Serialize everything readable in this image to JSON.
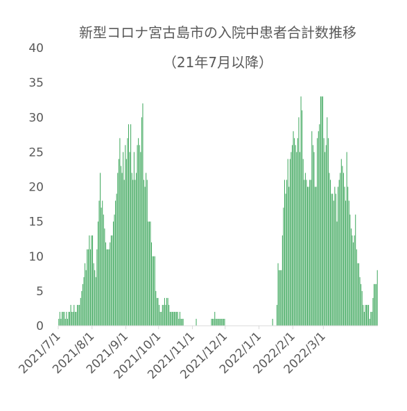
{
  "chart_data": {
    "type": "bar",
    "title": "新型コロナ宮古島市の入院中患者合計数推移",
    "subtitle": "（21年7月以降）",
    "xlabel": "",
    "ylabel": "",
    "ylim": [
      0,
      40
    ],
    "yticks": [
      "0",
      "5",
      "10",
      "15",
      "20",
      "25",
      "30",
      "35",
      "40"
    ],
    "xticks": [
      {
        "label": "2021/7/1",
        "date": "2021-07-01"
      },
      {
        "label": "2021/8/1",
        "date": "2021-08-01"
      },
      {
        "label": "2021/9/1",
        "date": "2021-09-01"
      },
      {
        "label": "2021/10/1",
        "date": "2021-10-01"
      },
      {
        "label": "2021/11/1",
        "date": "2021-11-01"
      },
      {
        "label": "2021/12/1",
        "date": "2021-12-01"
      },
      {
        "label": "2022/1/1",
        "date": "2022-01-01"
      },
      {
        "label": "2022/2/1",
        "date": "2022-02-01"
      },
      {
        "label": "2022/3/1",
        "date": "2022-03-01"
      }
    ],
    "grid": false,
    "legend": "none",
    "bar_color": "#2ea04f",
    "series": [
      {
        "start_date": "2021-07-01",
        "values": [
          1,
          2,
          1,
          2,
          2,
          2,
          1,
          2,
          1,
          2,
          2,
          3,
          2,
          2,
          3,
          2,
          2,
          3,
          3,
          3,
          4,
          5,
          6,
          7,
          9,
          8,
          11,
          11,
          13,
          11,
          13,
          13,
          9,
          8,
          7,
          11,
          15,
          18,
          22,
          17,
          18,
          16,
          14,
          12,
          11,
          11,
          11,
          12,
          13,
          13,
          15,
          16,
          18,
          19,
          22,
          24,
          27,
          23,
          22,
          25,
          21,
          26,
          24,
          27,
          29,
          25,
          29,
          22,
          21,
          25,
          21,
          22,
          26,
          27,
          26,
          25,
          30,
          32,
          21,
          20,
          22,
          21,
          15,
          15,
          15,
          12,
          10,
          10,
          10,
          5,
          4,
          4,
          3,
          2,
          2,
          3,
          3,
          4,
          3,
          4,
          4,
          3,
          2,
          2,
          2,
          2,
          2,
          2,
          2,
          2,
          1,
          2,
          1,
          1,
          1,
          0,
          0,
          0,
          0,
          0,
          0,
          0,
          0,
          0,
          0,
          0,
          1,
          0,
          0,
          0,
          0,
          0,
          0,
          0,
          0,
          0,
          0,
          0,
          0,
          0,
          1,
          1,
          1,
          2,
          1,
          1,
          1,
          1,
          1,
          1,
          1,
          1,
          1,
          0,
          0,
          0,
          0,
          0,
          0,
          0,
          0,
          0,
          0,
          0,
          0,
          0,
          0,
          0,
          0,
          0,
          0,
          0,
          0,
          0,
          0,
          0,
          0,
          0,
          0,
          0,
          0,
          0,
          0,
          0,
          0,
          0,
          0,
          0,
          0,
          0,
          0,
          0,
          0,
          0,
          0,
          0,
          1,
          0,
          0,
          0,
          3,
          9,
          8,
          8,
          8,
          13,
          17,
          21,
          19,
          21,
          24,
          20,
          24,
          25,
          26,
          28,
          27,
          26,
          25,
          27,
          30,
          25,
          33,
          31,
          24,
          21,
          22,
          21,
          20,
          20,
          21,
          21,
          28,
          26,
          25,
          20,
          20,
          27,
          28,
          29,
          33,
          33,
          33,
          27,
          25,
          26,
          30,
          27,
          22,
          21,
          19,
          19,
          18,
          20,
          19,
          15,
          20,
          21,
          22,
          24,
          23,
          22,
          20,
          18,
          25,
          20,
          18,
          16,
          14,
          13,
          12,
          13,
          16,
          11,
          9,
          9,
          7,
          6,
          5,
          3,
          2,
          3,
          3,
          3,
          3,
          1,
          2,
          2,
          4,
          6,
          6,
          6,
          8
        ]
      }
    ]
  }
}
